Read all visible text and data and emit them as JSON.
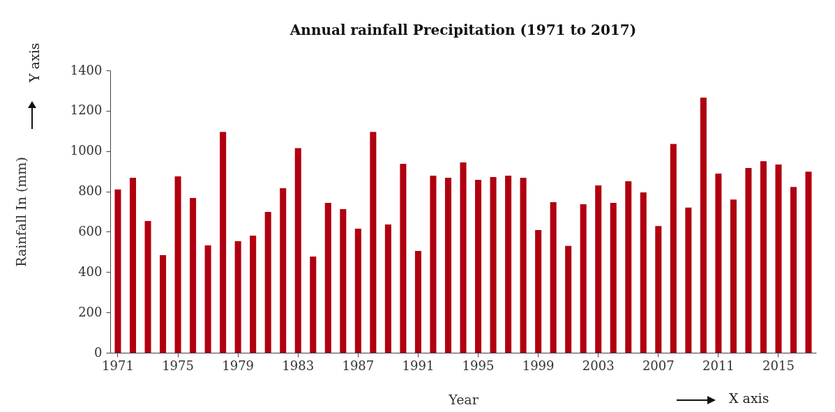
{
  "chart_data": {
    "type": "bar",
    "title": "Annual rainfall Precipitation (1971 to 2017)",
    "xlabel": "Year",
    "ylabel": "Rainfall In (mm)",
    "annotations": [
      "Y axis",
      "X axis"
    ],
    "categories": [
      "1971",
      null,
      null,
      null,
      "1975",
      null,
      null,
      null,
      "1979",
      null,
      null,
      null,
      "1983",
      null,
      null,
      null,
      "1987",
      null,
      null,
      null,
      "1991",
      null,
      null,
      null,
      "1995",
      null,
      null,
      null,
      "1999",
      null,
      null,
      null,
      "2003",
      null,
      null,
      null,
      "2007",
      null,
      null,
      null,
      "2011",
      null,
      null,
      null,
      "2015",
      null,
      null
    ],
    "values": [
      810,
      868,
      653,
      484,
      875,
      767,
      532,
      1095,
      553,
      581,
      698,
      816,
      1015,
      477,
      743,
      712,
      615,
      1095,
      636,
      937,
      505,
      878,
      868,
      944,
      857,
      871,
      878,
      868,
      608,
      747,
      530,
      736,
      830,
      743,
      850,
      795,
      628,
      1035,
      720,
      1265,
      888,
      760,
      916,
      950,
      933,
      822,
      898
    ],
    "color": "#b00010",
    "ylim": [
      0,
      1400
    ],
    "yticks": [
      0,
      200,
      400,
      600,
      800,
      1000,
      1200,
      1400
    ],
    "grid": false
  }
}
